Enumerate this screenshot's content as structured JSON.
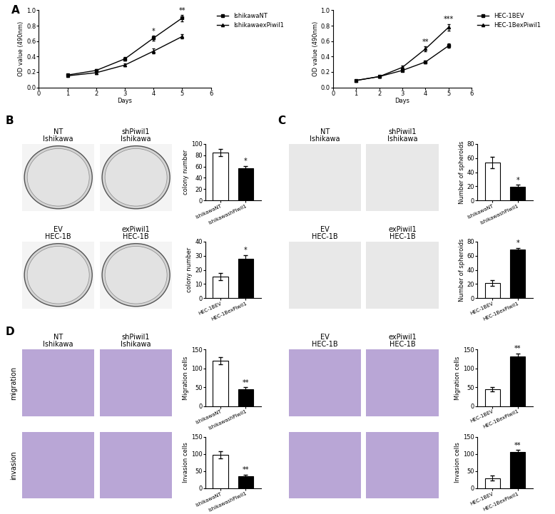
{
  "chart_data": [
    {
      "type": "line",
      "xlabel": "Days",
      "ylabel": "OD value (490nm)",
      "x": [
        1,
        2,
        3,
        4,
        5
      ],
      "xlim": [
        0,
        6
      ],
      "xticks": [
        0,
        1,
        2,
        3,
        4,
        5,
        6
      ],
      "ylim": [
        0,
        1
      ],
      "yticks": [
        {
          "value": 0,
          "label": "0.0"
        },
        0.2,
        0.4,
        0.6,
        0.8,
        {
          "value": 1,
          "label": "1.0"
        }
      ],
      "legend": "upper left",
      "series": [
        {
          "name": "IshikawaNT",
          "color": "#000000",
          "marker": "square",
          "values": [
            0.16,
            0.22,
            0.37,
            0.64,
            0.9
          ],
          "errors": [
            0.01,
            0.015,
            0.02,
            0.03,
            0.04
          ]
        },
        {
          "name": "IshikawaexPiwil1",
          "color": "#000000",
          "marker": "triangle",
          "values": [
            0.15,
            0.19,
            0.29,
            0.47,
            0.66
          ],
          "errors": [
            0.01,
            0.015,
            0.02,
            0.03,
            0.03
          ]
        }
      ],
      "annotations": [
        {
          "x": 4,
          "text": "*"
        },
        {
          "x": 5,
          "text": "**"
        }
      ]
    },
    {
      "type": "line",
      "xlabel": "Days",
      "ylabel": "OD value (490nm)",
      "x": [
        1,
        2,
        3,
        4,
        5
      ],
      "xlim": [
        0,
        6
      ],
      "xticks": [
        0,
        1,
        2,
        3,
        4,
        5,
        6
      ],
      "ylim": [
        0,
        1
      ],
      "yticks": [
        {
          "value": 0,
          "label": "0.0"
        },
        0.2,
        0.4,
        0.6,
        0.8,
        {
          "value": 1,
          "label": "1.0"
        }
      ],
      "legend": "upper left",
      "series": [
        {
          "name": "HEC-1BEV",
          "color": "#000000",
          "marker": "square",
          "values": [
            0.09,
            0.14,
            0.22,
            0.33,
            0.54
          ],
          "errors": [
            0.005,
            0.01,
            0.015,
            0.02,
            0.03
          ]
        },
        {
          "name": "HEC-1BexPiwil1",
          "color": "#000000",
          "marker": "triangle",
          "values": [
            0.09,
            0.14,
            0.26,
            0.5,
            0.78
          ],
          "errors": [
            0.005,
            0.01,
            0.02,
            0.03,
            0.04
          ]
        }
      ],
      "annotations": [
        {
          "x": 4,
          "text": "**"
        },
        {
          "x": 5,
          "text": "***"
        }
      ]
    },
    {
      "type": "bar",
      "ylabel": "colony number",
      "categories": [
        "IshikawaNT",
        "IshikawashPiwil1"
      ],
      "values": [
        85,
        57
      ],
      "errors": [
        6,
        4
      ],
      "colors": [
        "#ffffff",
        "#000000"
      ],
      "ylim": [
        0,
        100
      ],
      "yticks": [
        0,
        20,
        40,
        60,
        80,
        100
      ],
      "annotations": [
        {
          "x": "IshikawashPiwil1",
          "text": "*"
        }
      ]
    },
    {
      "type": "bar",
      "ylabel": "colony number",
      "categories": [
        "HEC-1BEV",
        "HEC-1BexPiwil1"
      ],
      "values": [
        15,
        28
      ],
      "errors": [
        2.5,
        2.5
      ],
      "colors": [
        "#ffffff",
        "#000000"
      ],
      "ylim": [
        0,
        40
      ],
      "yticks": [
        0,
        10,
        20,
        30,
        40
      ],
      "annotations": [
        {
          "x": "HEC-1BexPiwil1",
          "text": "*"
        }
      ]
    },
    {
      "type": "bar",
      "ylabel": "Number of spheroids",
      "categories": [
        "IshikawaNT",
        "IshikawashPiwil1"
      ],
      "values": [
        54,
        19
      ],
      "errors": [
        8,
        3
      ],
      "colors": [
        "#ffffff",
        "#000000"
      ],
      "ylim": [
        0,
        80
      ],
      "yticks": [
        0,
        20,
        40,
        60,
        80
      ],
      "annotations": [
        {
          "x": "IshikawashPiwil1",
          "text": "*"
        }
      ]
    },
    {
      "type": "bar",
      "ylabel": "Number of spheroids",
      "categories": [
        "HEC-1BEV",
        "HEC-1BexPiwil1"
      ],
      "values": [
        21,
        69
      ],
      "errors": [
        4,
        2
      ],
      "colors": [
        "#ffffff",
        "#000000"
      ],
      "ylim": [
        0,
        80
      ],
      "yticks": [
        0,
        20,
        40,
        60,
        80
      ],
      "annotations": [
        {
          "x": "HEC-1BexPiwil1",
          "text": "*"
        }
      ]
    },
    {
      "type": "bar",
      "ylabel": "Migration cells",
      "categories": [
        "IshikawaNT",
        "IshikawashPiwil1"
      ],
      "values": [
        120,
        45
      ],
      "errors": [
        10,
        5
      ],
      "colors": [
        "#ffffff",
        "#000000"
      ],
      "ylim": [
        0,
        150
      ],
      "yticks": [
        0,
        50,
        100,
        150
      ],
      "annotations": [
        {
          "x": "IshikawashPiwil1",
          "text": "**"
        }
      ]
    },
    {
      "type": "bar",
      "ylabel": "Invasion cells",
      "categories": [
        "IshikawaNT",
        "IshikawashPiwil1"
      ],
      "values": [
        98,
        35
      ],
      "errors": [
        10,
        5
      ],
      "colors": [
        "#ffffff",
        "#000000"
      ],
      "ylim": [
        0,
        150
      ],
      "yticks": [
        0,
        50,
        100,
        150
      ],
      "annotations": [
        {
          "x": "IshikawashPiwil1",
          "text": "**"
        }
      ]
    },
    {
      "type": "bar",
      "ylabel": "Migration cells",
      "categories": [
        "HEC-1BEV",
        "HEC-1BexPiwil1"
      ],
      "values": [
        45,
        132
      ],
      "errors": [
        6,
        8
      ],
      "colors": [
        "#ffffff",
        "#000000"
      ],
      "ylim": [
        0,
        150
      ],
      "yticks": [
        0,
        50,
        100,
        150
      ],
      "annotations": [
        {
          "x": "HEC-1BexPiwil1",
          "text": "**"
        }
      ]
    },
    {
      "type": "bar",
      "ylabel": "Invasion cells",
      "categories": [
        "HEC-1BEV",
        "HEC-1BexPiwil1"
      ],
      "values": [
        30,
        107
      ],
      "errors": [
        8,
        5
      ],
      "colors": [
        "#ffffff",
        "#000000"
      ],
      "ylim": [
        0,
        150
      ],
      "yticks": [
        0,
        50,
        100,
        150
      ],
      "annotations": [
        {
          "x": "HEC-1BexPiwil1",
          "text": "**"
        }
      ]
    }
  ],
  "panels": [
    {
      "label": "A"
    },
    {
      "label": "B",
      "images": [
        [
          {
            "condition": "NT",
            "cell_line": "Ishikawa"
          },
          {
            "condition": "shPiwil1",
            "cell_line": "Ishikawa"
          }
        ],
        [
          {
            "condition": "EV",
            "cell_line": "HEC-1B"
          },
          {
            "condition": "exPiwil1",
            "cell_line": "HEC-1B"
          }
        ]
      ]
    },
    {
      "label": "C",
      "images": [
        [
          {
            "condition": "NT",
            "cell_line": "Ishikawa"
          },
          {
            "condition": "shPiwil1",
            "cell_line": "Ishikawa"
          }
        ],
        [
          {
            "condition": "EV",
            "cell_line": "HEC-1B"
          },
          {
            "condition": "exPiwil1",
            "cell_line": "HEC-1B"
          }
        ]
      ]
    },
    {
      "label": "D",
      "row_labels": [
        "migration",
        "invasion"
      ],
      "images": [
        [
          {
            "condition": "NT",
            "cell_line": "Ishikawa"
          },
          {
            "condition": "shPiwil1",
            "cell_line": "Ishikawa"
          }
        ],
        [
          {
            "condition": "EV",
            "cell_line": "HEC-1B"
          },
          {
            "condition": "exPiwil1",
            "cell_line": "HEC-1B"
          }
        ]
      ]
    }
  ]
}
